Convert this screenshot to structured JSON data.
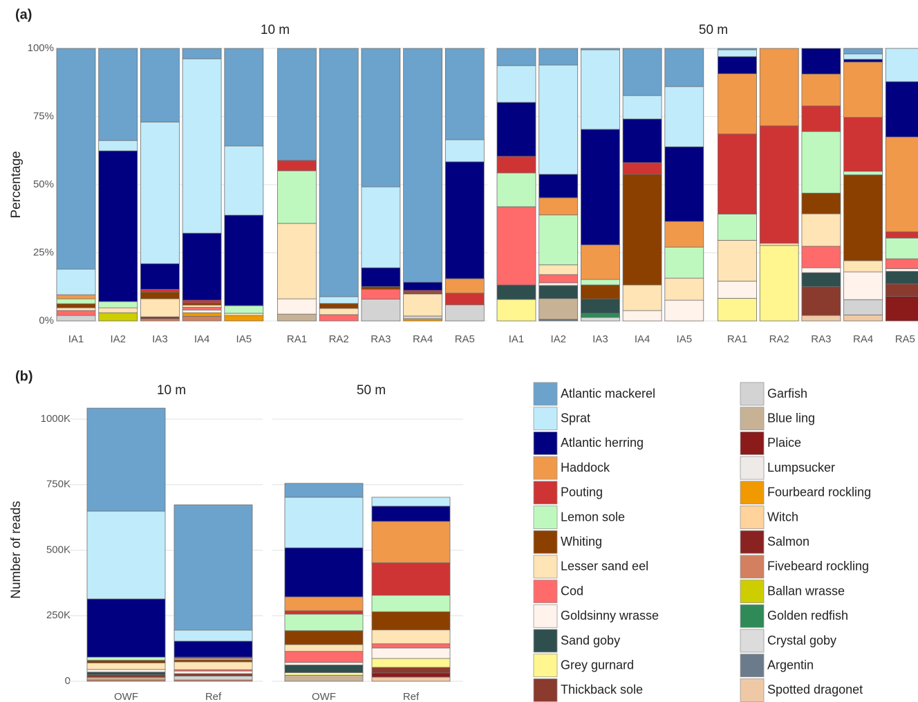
{
  "legend": [
    {
      "name": "Atlantic mackerel",
      "color": "#6ba3cc"
    },
    {
      "name": "Sprat",
      "color": "#c0ebfb"
    },
    {
      "name": "Atlantic herring",
      "color": "#000080"
    },
    {
      "name": "Haddock",
      "color": "#f0994b"
    },
    {
      "name": "Pouting",
      "color": "#cf3434"
    },
    {
      "name": "Lemon sole",
      "color": "#bff8bf"
    },
    {
      "name": "Whiting",
      "color": "#8b4000"
    },
    {
      "name": "Lesser sand eel",
      "color": "#ffe4b5"
    },
    {
      "name": "Cod",
      "color": "#ff6b6b"
    },
    {
      "name": "Goldsinny wrasse",
      "color": "#fff3ec"
    },
    {
      "name": "Sand goby",
      "color": "#2f4f4f"
    },
    {
      "name": "Grey gurnard",
      "color": "#fff68f"
    },
    {
      "name": "Thickback sole",
      "color": "#8b3a2e"
    },
    {
      "name": "Garfish",
      "color": "#d3d3d3"
    },
    {
      "name": "Blue ling",
      "color": "#c8b296"
    },
    {
      "name": "Plaice",
      "color": "#8b1a1a"
    },
    {
      "name": "Lumpsucker",
      "color": "#eeeae8"
    },
    {
      "name": "Fourbeard rockling",
      "color": "#f09a00"
    },
    {
      "name": "Witch",
      "color": "#ffd39b"
    },
    {
      "name": "Salmon",
      "color": "#8b2222"
    },
    {
      "name": "Fivebeard rockling",
      "color": "#d2805f"
    },
    {
      "name": "Ballan wrasse",
      "color": "#cdcd00"
    },
    {
      "name": "Golden redfish",
      "color": "#2e8b57"
    },
    {
      "name": "Crystal goby",
      "color": "#dcdcdc"
    },
    {
      "name": "Argentin",
      "color": "#6c7b8b"
    },
    {
      "name": "Spotted dragonet",
      "color": "#efc9a6"
    }
  ],
  "chart_data": [
    {
      "type": "bar",
      "stacked": true,
      "panel": "(a)",
      "ylabel": "Percentage",
      "ylim": [
        0,
        100
      ],
      "yticks": [
        {
          "value": 0,
          "label": "0%"
        },
        {
          "value": 25,
          "label": "25%"
        },
        {
          "value": 50,
          "label": "50%"
        },
        {
          "value": 75,
          "label": "75%"
        },
        {
          "value": 100,
          "label": "100%"
        }
      ],
      "grid": true,
      "facets": [
        {
          "label": "10 m",
          "categories": [
            "IA1",
            "IA2",
            "IA3",
            "IA4",
            "IA5",
            "RA1",
            "RA2",
            "RA3",
            "RA4",
            "RA5"
          ]
        },
        {
          "label": "50 m",
          "categories": [
            "IA1",
            "IA2",
            "IA3",
            "IA4",
            "IA5",
            "RA1",
            "RA2",
            "RA3",
            "RA4",
            "RA5"
          ]
        }
      ],
      "series": [
        {
          "values": [
            81,
            33.8,
            27,
            3.8,
            35.8,
            41.1,
            91.1,
            50.8,
            85.8,
            33.5,
            6.3,
            6.1,
            0.5,
            17.3,
            14,
            0.5,
            0,
            0,
            2,
            0
          ]
        },
        {
          "values": [
            9.4,
            3.8,
            52,
            64,
            25.4,
            0,
            2.5,
            29.7,
            0,
            8.1,
            13.5,
            40.1,
            29.2,
            8.6,
            22.1,
            2.5,
            0,
            0,
            2,
            12.2
          ]
        },
        {
          "values": [
            0,
            55.3,
            9.4,
            24.6,
            33.2,
            0,
            0,
            6.9,
            3,
            42.9,
            19.8,
            8.6,
            42.4,
            16,
            27.4,
            6.3,
            0,
            9.4,
            1,
            20.3
          ]
        },
        {
          "values": [
            1.5,
            0,
            0,
            0,
            0,
            0,
            0,
            0,
            0,
            5.3,
            0,
            6.3,
            12.7,
            0,
            9.4,
            22.1,
            28.4,
            11.7,
            20.3,
            34.8
          ]
        },
        {
          "values": [
            0,
            0,
            1,
            1,
            0,
            3.8,
            0,
            0,
            0.8,
            4.3,
            6.1,
            0,
            0,
            4.3,
            0,
            29.4,
            43.1,
            9.4,
            19.8,
            2.3
          ]
        },
        {
          "values": [
            1.8,
            2.3,
            0,
            0,
            2.8,
            19.3,
            0,
            0,
            0,
            0,
            12.4,
            18.3,
            2,
            0,
            11.4,
            9.6,
            0,
            22.6,
            1.3,
            7.6
          ]
        },
        {
          "values": [
            1.5,
            0,
            2.5,
            0.8,
            0,
            0,
            1.8,
            1,
            0.5,
            0,
            0,
            0,
            5.1,
            40.6,
            0,
            0,
            0,
            7.6,
            31.5,
            0
          ]
        },
        {
          "values": [
            1,
            1.8,
            6.6,
            0.8,
            0.8,
            27.7,
            2.3,
            0,
            8.1,
            0,
            0,
            3.6,
            0,
            9.4,
            8.1,
            15,
            0.8,
            11.9,
            4.1,
            0
          ]
        },
        {
          "values": [
            1.8,
            0,
            0,
            1,
            0,
            0,
            2.3,
            3.6,
            0,
            0,
            28.7,
            3,
            0,
            0,
            0,
            0,
            0,
            7.9,
            0,
            3.6
          ]
        },
        {
          "values": [
            0,
            0,
            0,
            1,
            0,
            5.6,
            0,
            0,
            0,
            0,
            0,
            1,
            0,
            3.8,
            7.6,
            6.3,
            0,
            1.8,
            10.2,
            1
          ]
        },
        {
          "values": [
            0,
            0,
            0,
            0,
            0,
            0,
            0,
            0,
            0,
            0,
            5.3,
            4.8,
            5.3,
            0,
            0,
            0,
            0,
            5.1,
            0,
            4.6
          ]
        },
        {
          "values": [
            0,
            0,
            0,
            0,
            0,
            0,
            0,
            0,
            0,
            0,
            7.9,
            0,
            0,
            0,
            0,
            8.3,
            27.7,
            0,
            0,
            0
          ]
        },
        {
          "values": [
            0,
            0,
            0.7,
            0,
            0,
            0,
            0,
            0,
            0,
            0,
            0,
            0,
            0,
            0,
            0,
            0,
            0,
            10.6,
            0,
            4.6
          ]
        },
        {
          "values": [
            2,
            0,
            0,
            0,
            0,
            0,
            0,
            8,
            1,
            5.9,
            0,
            0,
            0,
            0,
            0,
            0,
            0,
            0,
            5.6,
            0
          ]
        },
        {
          "values": [
            0,
            0,
            0,
            0,
            0,
            2.5,
            0,
            0,
            0,
            0,
            0,
            7.6,
            0,
            0,
            0,
            0,
            0,
            0,
            0,
            0
          ]
        },
        {
          "values": [
            0,
            0,
            0,
            0,
            0,
            0,
            0,
            0,
            0,
            0,
            0,
            0,
            0,
            0,
            0,
            0,
            0,
            0,
            0,
            9
          ]
        },
        {
          "values": [
            0,
            0,
            0,
            0,
            0,
            0,
            0,
            0,
            0,
            0,
            0,
            0,
            0,
            0,
            0,
            0,
            0,
            0,
            0,
            0
          ]
        },
        {
          "values": [
            0,
            0,
            0,
            1.3,
            2,
            0,
            0,
            0,
            0.8,
            0,
            0,
            0,
            0,
            0,
            0,
            0,
            0,
            0,
            0,
            0
          ]
        },
        {
          "values": [
            0,
            0,
            0,
            0,
            0,
            0,
            0,
            0,
            0,
            0,
            0,
            0,
            0,
            0,
            0,
            0,
            0,
            0,
            0,
            0
          ]
        },
        {
          "values": [
            0,
            0,
            0,
            0,
            0,
            0,
            0,
            0,
            0,
            0,
            0,
            0,
            0,
            0,
            0,
            0,
            0,
            0,
            0,
            0
          ]
        },
        {
          "values": [
            0,
            0,
            0.8,
            1.7,
            0,
            0,
            0,
            0,
            0,
            0,
            0,
            0,
            0,
            0,
            0,
            0,
            0,
            0,
            0,
            0
          ]
        },
        {
          "values": [
            0,
            3,
            0,
            0,
            0,
            0,
            0,
            0,
            0,
            0,
            0,
            0,
            0,
            0,
            0,
            0,
            0,
            0,
            0,
            0
          ]
        },
        {
          "values": [
            0,
            0,
            0,
            0,
            0,
            0,
            0,
            0,
            0,
            0,
            0,
            0,
            1.5,
            0,
            0,
            0,
            0,
            0,
            0,
            0
          ]
        },
        {
          "values": [
            0,
            0,
            0,
            0,
            0,
            0,
            0,
            0,
            0,
            0,
            0,
            0,
            1.3,
            0,
            0,
            0,
            0,
            0,
            0,
            0
          ]
        },
        {
          "values": [
            0,
            0,
            0,
            0,
            0,
            0,
            0,
            0,
            0,
            0,
            0,
            0.6,
            0,
            0,
            0,
            0,
            0,
            0,
            0,
            0
          ]
        },
        {
          "values": [
            0,
            0,
            0,
            0,
            0,
            0,
            0,
            0,
            0,
            0,
            0,
            0,
            0,
            0,
            0,
            0,
            0,
            2,
            2.2,
            0
          ]
        }
      ]
    },
    {
      "type": "bar",
      "stacked": true,
      "panel": "(b)",
      "ylabel": "Number of reads",
      "ylim": [
        0,
        1050000
      ],
      "yticks": [
        0,
        {
          "value": 250000,
          "label": "250K"
        },
        {
          "value": 500000,
          "label": "500K"
        },
        {
          "value": 750000,
          "label": "750K"
        },
        {
          "value": 1000000,
          "label": "1000K"
        }
      ],
      "grid": true,
      "facets": [
        {
          "label": "10 m",
          "categories": [
            "OWF",
            "Ref"
          ]
        },
        {
          "label": "50 m",
          "categories": [
            "OWF",
            "Ref"
          ]
        }
      ],
      "series": [
        {
          "values": [
            393000,
            478000,
            53000,
            0
          ]
        },
        {
          "values": [
            335000,
            42000,
            193000,
            34000
          ]
        },
        {
          "values": [
            222000,
            61000,
            187000,
            58000
          ]
        },
        {
          "values": [
            0,
            0,
            53000,
            158000
          ]
        },
        {
          "values": [
            0,
            5000,
            13000,
            124000
          ]
        },
        {
          "values": [
            12000,
            5000,
            63000,
            63000
          ]
        },
        {
          "values": [
            10000,
            8000,
            53000,
            69000
          ]
        },
        {
          "values": [
            25000,
            30000,
            26000,
            53000
          ]
        },
        {
          "values": [
            0,
            5000,
            42000,
            16000
          ]
        },
        {
          "values": [
            10000,
            10000,
            10000,
            40000
          ]
        },
        {
          "values": [
            10000,
            0,
            29000,
            0
          ]
        },
        {
          "values": [
            0,
            0,
            10000,
            34000
          ]
        },
        {
          "values": [
            10000,
            9000,
            0,
            21000
          ]
        },
        {
          "values": [
            0,
            15000,
            0,
            0
          ]
        },
        {
          "values": [
            10000,
            0,
            23000,
            0
          ]
        },
        {
          "values": [
            0,
            0,
            0,
            16000
          ]
        },
        {
          "values": [
            0,
            0,
            0,
            0
          ]
        },
        {
          "values": [
            0,
            0,
            0,
            0
          ]
        },
        {
          "values": [
            0,
            0,
            0,
            0
          ]
        },
        {
          "values": [
            0,
            0,
            0,
            0
          ]
        },
        {
          "values": [
            5000,
            5000,
            0,
            0
          ]
        },
        {
          "values": [
            0,
            0,
            0,
            0
          ]
        },
        {
          "values": [
            0,
            0,
            0,
            0
          ]
        },
        {
          "values": [
            0,
            0,
            0,
            0
          ]
        },
        {
          "values": [
            0,
            0,
            0,
            0
          ]
        },
        {
          "values": [
            0,
            0,
            0,
            16000
          ]
        }
      ]
    }
  ]
}
